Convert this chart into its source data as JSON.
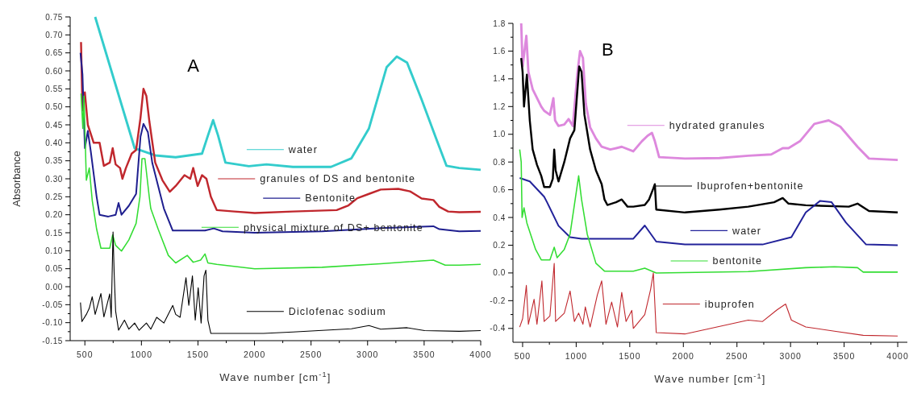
{
  "chart_data": [
    {
      "type": "line",
      "title": "A",
      "legend": "right",
      "xlabel": "Wave number [cm$^{-1}$]",
      "ylabel": "Absorbance",
      "xlim": [
        370,
        4000
      ],
      "ylim": [
        -0.15,
        0.75
      ],
      "xticks": [
        500,
        {
          "value": 750,
          "label": null
        },
        1000,
        {
          "value": 1250,
          "label": null
        },
        1500,
        {
          "value": 1750,
          "label": null
        },
        2000,
        {
          "value": 2250,
          "label": null
        },
        2500,
        {
          "value": 2750,
          "label": null
        },
        3000,
        {
          "value": 3250,
          "label": null
        },
        3500,
        {
          "value": 3750,
          "label": null
        },
        4000
      ],
      "yticks": [
        -0.15,
        {
          "value": -0.125,
          "label": null
        },
        {
          "value": -0.1,
          "label": "-0.10"
        },
        {
          "value": -0.075,
          "label": null
        },
        -0.05,
        {
          "value": -0.025,
          "label": null
        },
        {
          "value": 0,
          "label": "0.00"
        },
        {
          "value": 0.025,
          "label": null
        },
        0.05,
        {
          "value": 0.075,
          "label": null
        },
        {
          "value": 0.1,
          "label": "0.10"
        },
        {
          "value": 0.125,
          "label": null
        },
        0.15,
        {
          "value": 0.175,
          "label": null
        },
        {
          "value": 0.2,
          "label": "0.20"
        },
        {
          "value": 0.225,
          "label": null
        },
        0.25,
        {
          "value": 0.275,
          "label": null
        },
        {
          "value": 0.3,
          "label": "0.30"
        },
        {
          "value": 0.325,
          "label": null
        },
        0.35,
        {
          "value": 0.375,
          "label": null
        },
        {
          "value": 0.4,
          "label": "0.40"
        },
        {
          "value": 0.425,
          "label": null
        },
        0.45,
        {
          "value": 0.475,
          "label": null
        },
        {
          "value": 0.5,
          "label": "0.50"
        },
        {
          "value": 0.525,
          "label": null
        },
        0.55,
        {
          "value": 0.575,
          "label": null
        },
        {
          "value": 0.6,
          "label": "0.60"
        },
        {
          "value": 0.625,
          "label": null
        },
        0.65,
        {
          "value": 0.675,
          "label": null
        },
        {
          "value": 0.7,
          "label": "0.70"
        },
        {
          "value": 0.725,
          "label": null
        },
        0.75
      ],
      "series": [
        {
          "name": "water",
          "color": "#33cccc",
          "x": [
            591,
            940,
            1122,
            1303,
            1536,
            1588,
            1634,
            1678,
            1743,
            1950,
            2106,
            2339,
            2676,
            2857,
            3012,
            3168,
            3258,
            3349,
            3478,
            3608,
            3698,
            3810,
            4000
          ],
          "values": [
            0.75,
            0.385,
            0.365,
            0.36,
            0.37,
            0.42,
            0.463,
            0.42,
            0.345,
            0.335,
            0.34,
            0.333,
            0.333,
            0.357,
            0.44,
            0.61,
            0.64,
            0.623,
            0.52,
            0.41,
            0.336,
            0.33,
            0.325
          ]
        },
        {
          "name": "granules of DS and bentonite",
          "color": "#c0272d",
          "x": [
            466,
            479,
            500,
            526,
            578,
            630,
            668,
            720,
            746,
            772,
            811,
            832,
            863,
            914,
            953,
            992,
            1018,
            1044,
            1070,
            1122,
            1186,
            1251,
            1303,
            1381,
            1432,
            1458,
            1497,
            1536,
            1575,
            1614,
            1666,
            1821,
            2002,
            2339,
            2727,
            2831,
            2909,
            3012,
            3116,
            3271,
            3375,
            3478,
            3582,
            3634,
            3712,
            3810,
            4000
          ],
          "values": [
            0.68,
            0.49,
            0.54,
            0.45,
            0.4,
            0.4,
            0.336,
            0.345,
            0.385,
            0.34,
            0.33,
            0.3,
            0.33,
            0.37,
            0.38,
            0.47,
            0.55,
            0.53,
            0.46,
            0.345,
            0.296,
            0.264,
            0.28,
            0.31,
            0.3,
            0.33,
            0.28,
            0.31,
            0.3,
            0.25,
            0.213,
            0.209,
            0.205,
            0.209,
            0.213,
            0.226,
            0.246,
            0.258,
            0.27,
            0.272,
            0.265,
            0.245,
            0.241,
            0.222,
            0.209,
            0.207,
            0.208
          ]
        },
        {
          "name": "Bentonite",
          "color": "#1f1f8f",
          "x": [
            461,
            479,
            500,
            526,
            552,
            604,
            630,
            707,
            772,
            798,
            824,
            889,
            953,
            966,
            992,
            1018,
            1057,
            1096,
            1148,
            1199,
            1277,
            1562,
            1640,
            1717,
            2002,
            2598,
            3116,
            3582,
            3634,
            3810,
            4000
          ],
          "values": [
            0.65,
            0.59,
            0.385,
            0.433,
            0.377,
            0.25,
            0.2,
            0.195,
            0.2,
            0.233,
            0.2,
            0.225,
            0.258,
            0.312,
            0.417,
            0.453,
            0.43,
            0.344,
            0.28,
            0.217,
            0.156,
            0.156,
            0.162,
            0.154,
            0.15,
            0.154,
            0.163,
            0.168,
            0.16,
            0.154,
            0.155
          ]
        },
        {
          "name": "physical mixture of DS+ bentonite",
          "color": "#33dd33",
          "x": [
            466,
            482,
            492,
            513,
            539,
            565,
            604,
            642,
            720,
            746,
            772,
            824,
            889,
            953,
            987,
            1005,
            1031,
            1070,
            1083,
            1148,
            1238,
            1303,
            1406,
            1458,
            1523,
            1562,
            1588,
            1666,
            2002,
            2598,
            3116,
            3582,
            3686,
            3810,
            4000
          ],
          "values": [
            0.537,
            0.44,
            0.53,
            0.296,
            0.33,
            0.24,
            0.16,
            0.107,
            0.107,
            0.144,
            0.115,
            0.099,
            0.13,
            0.176,
            0.25,
            0.356,
            0.356,
            0.248,
            0.217,
            0.16,
            0.087,
            0.066,
            0.087,
            0.068,
            0.074,
            0.091,
            0.066,
            0.062,
            0.05,
            0.054,
            0.064,
            0.074,
            0.06,
            0.06,
            0.062
          ]
        },
        {
          "name": "Diclofenac sodium",
          "color": "#000000",
          "x": [
            461,
            474,
            513,
            539,
            565,
            591,
            642,
            668,
            720,
            733,
            749,
            759,
            772,
            798,
            850,
            889,
            940,
            979,
            1044,
            1083,
            1135,
            1199,
            1277,
            1303,
            1342,
            1394,
            1419,
            1451,
            1476,
            1502,
            1528,
            1554,
            1570,
            1588,
            1614,
            1821,
            2080,
            2339,
            2857,
            3012,
            3116,
            3349,
            3504,
            3810,
            4000
          ],
          "values": [
            -0.044,
            -0.097,
            -0.077,
            -0.06,
            -0.028,
            -0.077,
            -0.019,
            -0.084,
            -0.02,
            -0.085,
            0.152,
            0.038,
            -0.068,
            -0.121,
            -0.093,
            -0.118,
            -0.101,
            -0.121,
            -0.101,
            -0.118,
            -0.085,
            -0.101,
            -0.052,
            -0.077,
            -0.085,
            0.025,
            -0.052,
            0.03,
            -0.093,
            -0.003,
            -0.101,
            0.03,
            0.046,
            -0.093,
            -0.13,
            -0.13,
            -0.13,
            -0.126,
            -0.117,
            -0.108,
            -0.118,
            -0.114,
            -0.122,
            -0.124,
            -0.122
          ]
        }
      ]
    },
    {
      "type": "line",
      "title": "B",
      "legend": "right",
      "xlabel": "Wave number [cm$^{-1}$]",
      "xlim": [
        410,
        4090
      ],
      "ylim": [
        -0.5,
        1.8
      ],
      "xticks": [
        500,
        {
          "value": 750,
          "label": null
        },
        1000,
        {
          "value": 1250,
          "label": null
        },
        1500,
        {
          "value": 1750,
          "label": null
        },
        2000,
        {
          "value": 2250,
          "label": null
        },
        2500,
        {
          "value": 2750,
          "label": null
        },
        3000,
        {
          "value": 3250,
          "label": null
        },
        3500,
        {
          "value": 3750,
          "label": null
        },
        4000
      ],
      "yticks": [
        {
          "value": -0.4,
          "label": "-0.4"
        },
        {
          "value": -0.3,
          "label": null
        },
        {
          "value": -0.2,
          "label": "-0.2"
        },
        {
          "value": -0.1,
          "label": null
        },
        {
          "value": 0,
          "label": "0.0"
        },
        {
          "value": 0.1,
          "label": null
        },
        0.2,
        {
          "value": 0.3,
          "label": null
        },
        0.4,
        {
          "value": 0.5,
          "label": null
        },
        0.6,
        {
          "value": 0.7,
          "label": null
        },
        0.8,
        {
          "value": 0.9,
          "label": null
        },
        {
          "value": 1,
          "label": "1.0"
        },
        {
          "value": 1.1,
          "label": null
        },
        1.2,
        {
          "value": 1.3,
          "label": null
        },
        1.4,
        {
          "value": 1.5,
          "label": null
        },
        1.6,
        {
          "value": 1.7,
          "label": null
        },
        1.8
      ],
      "series": [
        {
          "name": "hydrated granules",
          "color": "#dd88dd",
          "x": [
            487,
            500,
            535,
            554,
            594,
            648,
            674,
            701,
            755,
            787,
            803,
            835,
            889,
            929,
            969,
            1010,
            1036,
            1063,
            1090,
            1130,
            1184,
            1238,
            1318,
            1425,
            1533,
            1613,
            1667,
            1707,
            1734,
            1774,
            2015,
            2337,
            2605,
            2820,
            2927,
            2981,
            3088,
            3222,
            3356,
            3464,
            3625,
            3732,
            4000
          ],
          "values": [
            1.8,
            1.49,
            1.71,
            1.45,
            1.325,
            1.24,
            1.2,
            1.17,
            1.14,
            1.26,
            1.1,
            1.06,
            1.07,
            1.11,
            1.06,
            1.43,
            1.6,
            1.55,
            1.22,
            1.05,
            0.97,
            0.91,
            0.89,
            0.91,
            0.877,
            0.95,
            0.99,
            1.01,
            0.95,
            0.835,
            0.825,
            0.829,
            0.845,
            0.855,
            0.9,
            0.9,
            0.95,
            1.075,
            1.1,
            1.055,
            0.91,
            0.825,
            0.815
          ]
        },
        {
          "name": "Ibuprofen+bentonite",
          "color": "#000000",
          "x": [
            487,
            500,
            513,
            540,
            567,
            594,
            634,
            674,
            701,
            755,
            782,
            795,
            808,
            835,
            889,
            943,
            983,
            1028,
            1050,
            1077,
            1130,
            1184,
            1238,
            1264,
            1291,
            1372,
            1425,
            1479,
            1533,
            1640,
            1680,
            1720,
            1734,
            1747,
            2015,
            2337,
            2605,
            2847,
            2927,
            2981,
            3142,
            3544,
            3625,
            3732,
            4000
          ],
          "values": [
            1.55,
            1.45,
            1.2,
            1.43,
            1.1,
            0.89,
            0.78,
            0.7,
            0.62,
            0.62,
            0.68,
            0.89,
            0.74,
            0.66,
            0.8,
            0.97,
            1.03,
            1.49,
            1.45,
            1.14,
            0.89,
            0.74,
            0.64,
            0.53,
            0.49,
            0.51,
            0.53,
            0.478,
            0.478,
            0.49,
            0.53,
            0.61,
            0.64,
            0.457,
            0.436,
            0.457,
            0.478,
            0.51,
            0.54,
            0.5,
            0.488,
            0.478,
            0.5,
            0.447,
            0.436
          ]
        },
        {
          "name": "water",
          "color": "#22229a",
          "x": [
            473,
            567,
            701,
            728,
            835,
            943,
            1050,
            1533,
            1640,
            1747,
            2015,
            2739,
            3008,
            3142,
            3276,
            3383,
            3517,
            3705,
            4000
          ],
          "values": [
            0.685,
            0.66,
            0.55,
            0.51,
            0.34,
            0.258,
            0.247,
            0.247,
            0.342,
            0.226,
            0.205,
            0.205,
            0.258,
            0.436,
            0.52,
            0.51,
            0.363,
            0.205,
            0.2
          ]
        },
        {
          "name": "bentonite",
          "color": "#33dd33",
          "x": [
            473,
            487,
            495,
            513,
            540,
            621,
            674,
            755,
            795,
            822,
            889,
            943,
            983,
            1023,
            1050,
            1103,
            1184,
            1264,
            1533,
            1640,
            1747,
            2605,
            3142,
            3410,
            3625,
            3678,
            4000
          ],
          "values": [
            0.89,
            0.8,
            0.4,
            0.47,
            0.36,
            0.17,
            0.094,
            0.094,
            0.185,
            0.11,
            0.17,
            0.28,
            0.49,
            0.7,
            0.53,
            0.28,
            0.07,
            0.013,
            0.013,
            0.034,
            0,
            0.01,
            0.038,
            0.044,
            0.038,
            0.006,
            0.006
          ]
        },
        {
          "name": "ibuprofen",
          "color": "#c0272d",
          "x": [
            473,
            500,
            535,
            554,
            607,
            634,
            680,
            701,
            755,
            795,
            808,
            889,
            943,
            983,
            1023,
            1063,
            1085,
            1130,
            1197,
            1238,
            1278,
            1331,
            1385,
            1425,
            1465,
            1519,
            1533,
            1640,
            1694,
            1720,
            1747,
            2015,
            2605,
            2739,
            2874,
            2954,
            3008,
            3142,
            3410,
            3678,
            4000
          ],
          "values": [
            -0.39,
            -0.33,
            -0.09,
            -0.37,
            -0.19,
            -0.37,
            -0.057,
            -0.35,
            -0.31,
            0.069,
            -0.35,
            -0.29,
            -0.13,
            -0.35,
            -0.29,
            -0.37,
            -0.245,
            -0.39,
            -0.16,
            -0.057,
            -0.37,
            -0.21,
            -0.39,
            -0.14,
            -0.35,
            -0.27,
            -0.4,
            -0.3,
            -0.12,
            0,
            -0.43,
            -0.44,
            -0.34,
            -0.35,
            -0.266,
            -0.224,
            -0.34,
            -0.39,
            -0.42,
            -0.45,
            -0.455
          ]
        }
      ]
    }
  ]
}
